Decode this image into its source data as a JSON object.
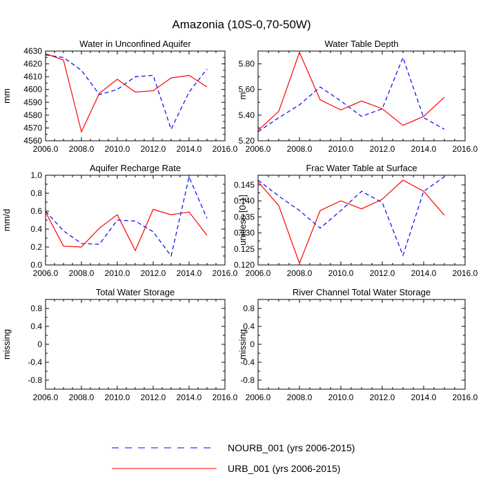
{
  "title": "Amazonia (10S-0,70-50W)",
  "colors": {
    "nourb": "#0000ff",
    "urb": "#ff0000",
    "axis": "#000000"
  },
  "legend": {
    "entries": [
      {
        "label": "NOURB_001 (yrs 2006-2015)",
        "series": "NOURB_001",
        "style": "dashed"
      },
      {
        "label": "URB_001 (yrs 2006-2015)",
        "series": "URB_001",
        "style": "solid"
      }
    ]
  },
  "chart_data": [
    {
      "type": "line",
      "title": "Water in Unconfined Aquifer",
      "xlabel": "",
      "ylabel": "mm",
      "xlim": [
        2006,
        2016
      ],
      "ylim": [
        4560,
        4630
      ],
      "xticks": [
        2006,
        2008,
        2010,
        2012,
        2014,
        2016
      ],
      "xtick_labels": [
        "2006.0",
        "2008.0",
        "2010.0",
        "2012.0",
        "2014.0",
        "2016.0"
      ],
      "yticks": [
        4560,
        4570,
        4580,
        4590,
        4600,
        4610,
        4620,
        4630
      ],
      "ytick_labels": [
        "4560",
        "4570",
        "4580",
        "4590",
        "4600",
        "4610",
        "4620",
        "4630"
      ],
      "x": [
        2006,
        2007,
        2008,
        2009,
        2010,
        2011,
        2012,
        2013,
        2014,
        2015
      ],
      "series": [
        {
          "name": "NOURB_001",
          "values": [
            4627,
            4625,
            4615,
            4596,
            4600,
            4610,
            4611,
            4569,
            4598,
            4616
          ]
        },
        {
          "name": "URB_001",
          "values": [
            4628,
            4623,
            4567,
            4597,
            4608,
            4598,
            4599,
            4609,
            4611,
            4602
          ]
        }
      ]
    },
    {
      "type": "line",
      "title": "Water Table Depth",
      "xlabel": "",
      "ylabel": "m",
      "xlim": [
        2006,
        2016
      ],
      "ylim": [
        5.2,
        5.9
      ],
      "xticks": [
        2006,
        2008,
        2010,
        2012,
        2014,
        2016
      ],
      "xtick_labels": [
        "2006.0",
        "2008.0",
        "2010.0",
        "2012.0",
        "2014.0",
        "2016.0"
      ],
      "yticks": [
        5.2,
        5.4,
        5.6,
        5.8
      ],
      "ytick_labels": [
        "5.20",
        "5.40",
        "5.60",
        "5.80"
      ],
      "x": [
        2006,
        2007,
        2008,
        2009,
        2010,
        2011,
        2012,
        2013,
        2014,
        2015
      ],
      "series": [
        {
          "name": "NOURB_001",
          "values": [
            5.27,
            5.38,
            5.48,
            5.62,
            5.51,
            5.39,
            5.45,
            5.85,
            5.38,
            5.29
          ]
        },
        {
          "name": "URB_001",
          "values": [
            5.28,
            5.43,
            5.89,
            5.52,
            5.44,
            5.51,
            5.45,
            5.32,
            5.39,
            5.54
          ]
        }
      ]
    },
    {
      "type": "line",
      "title": "Aquifer Recharge Rate",
      "xlabel": "",
      "ylabel": "mm/d",
      "xlim": [
        2006,
        2016
      ],
      "ylim": [
        0.0,
        1.0
      ],
      "xticks": [
        2006,
        2008,
        2010,
        2012,
        2014,
        2016
      ],
      "xtick_labels": [
        "2006.0",
        "2008.0",
        "2010.0",
        "2012.0",
        "2014.0",
        "2016.0"
      ],
      "yticks": [
        0.0,
        0.2,
        0.4,
        0.6,
        0.8,
        1.0
      ],
      "ytick_labels": [
        "0.0",
        "0.2",
        "0.4",
        "0.6",
        "0.8",
        "1.0"
      ],
      "x": [
        2006,
        2007,
        2008,
        2009,
        2010,
        2011,
        2012,
        2013,
        2014,
        2015
      ],
      "series": [
        {
          "name": "NOURB_001",
          "values": [
            0.6,
            0.38,
            0.24,
            0.23,
            0.5,
            0.49,
            0.37,
            0.1,
            0.98,
            0.52
          ]
        },
        {
          "name": "URB_001",
          "values": [
            0.59,
            0.21,
            0.2,
            0.41,
            0.56,
            0.16,
            0.62,
            0.56,
            0.59,
            0.33
          ]
        }
      ]
    },
    {
      "type": "line",
      "title": "Frac Water Table at Surface",
      "xlabel": "",
      "ylabel": "unitless [0-1]",
      "xlim": [
        2006,
        2016
      ],
      "ylim": [
        0.12,
        0.148
      ],
      "xticks": [
        2006,
        2008,
        2010,
        2012,
        2014,
        2016
      ],
      "xtick_labels": [
        "2006.0",
        "2008.0",
        "2010.0",
        "2012.0",
        "2014.0",
        "2016.0"
      ],
      "yticks": [
        0.12,
        0.125,
        0.13,
        0.135,
        0.14,
        0.145
      ],
      "ytick_labels": [
        "0.120",
        "0.125",
        "0.130",
        "0.135",
        "0.140",
        "0.145"
      ],
      "x": [
        2006,
        2007,
        2008,
        2009,
        2010,
        2011,
        2012,
        2013,
        2014,
        2015
      ],
      "series": [
        {
          "name": "NOURB_001",
          "values": [
            0.1465,
            0.1415,
            0.137,
            0.1315,
            0.137,
            0.143,
            0.1395,
            0.123,
            0.143,
            0.1475
          ]
        },
        {
          "name": "URB_001",
          "values": [
            0.146,
            0.1385,
            0.1205,
            0.137,
            0.14,
            0.1375,
            0.1405,
            0.1465,
            0.143,
            0.1355
          ]
        }
      ]
    },
    {
      "type": "line",
      "title": "Total Water Storage",
      "xlabel": "",
      "ylabel": "missing",
      "xlim": [
        2006,
        2016
      ],
      "ylim": [
        -1.0,
        1.0
      ],
      "xticks": [
        2006,
        2008,
        2010,
        2012,
        2014,
        2016
      ],
      "xtick_labels": [
        "2006.0",
        "2008.0",
        "2010.0",
        "2012.0",
        "2014.0",
        "2016.0"
      ],
      "yticks": [
        -0.8,
        -0.4,
        0.0,
        0.4,
        0.8
      ],
      "ytick_labels": [
        "-0.8",
        "-0.4",
        "0",
        "0.4",
        "0.8"
      ],
      "x": [],
      "series": []
    },
    {
      "type": "line",
      "title": "River Channel Total Water Storage",
      "xlabel": "",
      "ylabel": "missing",
      "xlim": [
        2006,
        2016
      ],
      "ylim": [
        -1.0,
        1.0
      ],
      "xticks": [
        2006,
        2008,
        2010,
        2012,
        2014,
        2016
      ],
      "xtick_labels": [
        "2006.0",
        "2008.0",
        "2010.0",
        "2012.0",
        "2014.0",
        "2016.0"
      ],
      "yticks": [
        -0.8,
        -0.4,
        0.0,
        0.4,
        0.8
      ],
      "ytick_labels": [
        "-0.8",
        "-0.4",
        "0",
        "0.4",
        "0.8"
      ],
      "x": [],
      "series": []
    }
  ]
}
